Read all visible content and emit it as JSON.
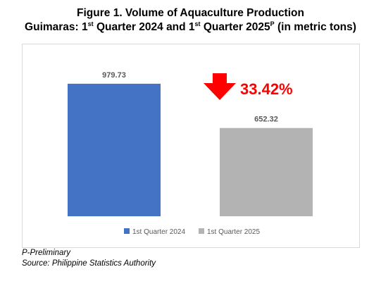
{
  "title": {
    "line1": "Figure 1. Volume of Aquaculture Production",
    "line2_a": "Guimaras: 1",
    "line2_sup1": "st",
    "line2_b": " Quarter 2024 and 1",
    "line2_sup2": "st",
    "line2_c": " Quarter 2025",
    "line2_sup3": "P",
    "line2_d": " (in metric tons)"
  },
  "chart_data": {
    "type": "bar",
    "categories": [
      "1st Quarter 2024",
      "1st Quarter 2025"
    ],
    "series": [
      {
        "name": "1st Quarter 2024",
        "values": [
          979.73,
          null
        ],
        "color": "#4472c4"
      },
      {
        "name": "1st Quarter 2025",
        "values": [
          null,
          652.32
        ],
        "color": "#b3b3b3"
      }
    ],
    "data_labels": [
      "979.73",
      "652.32"
    ],
    "ylim": [
      0,
      1130
    ],
    "grid": false,
    "legend": {
      "position": "bottom"
    },
    "annotation": {
      "text": "33.42%",
      "icon": "down-arrow-icon",
      "color": "#ff0000"
    }
  },
  "footnotes": {
    "preliminary": "P-Preliminary",
    "source": "Source: Philippine Statistics Authority"
  }
}
